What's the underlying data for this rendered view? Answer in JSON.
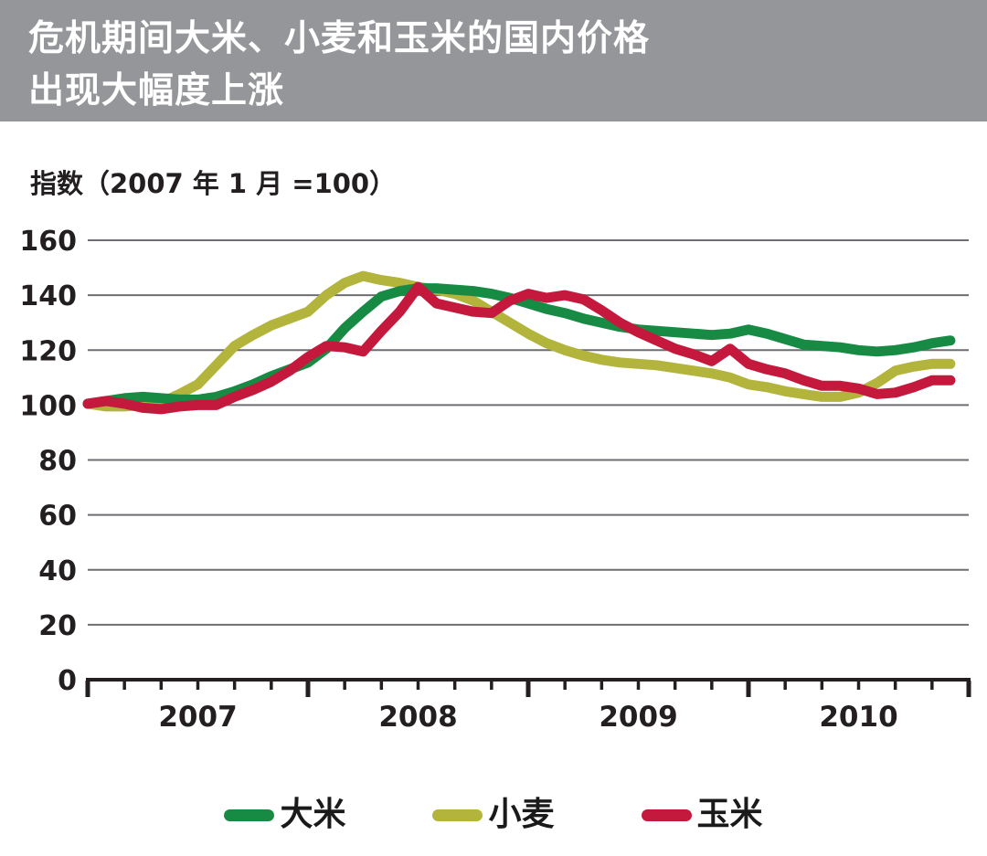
{
  "header": {
    "title_line1": "危机期间大米、小麦和玉米的国内价格",
    "title_line2": "出现大幅度上涨",
    "bg_color": "#95969A"
  },
  "chart_data": {
    "type": "line",
    "title": "危机期间大米、小麦和玉米的国内价格出现大幅度上涨",
    "axis_note": "指数（2007 年 1 月 =100）",
    "x_unit": "month",
    "x_start": "2007-01",
    "x_end": "2010-12",
    "x_tick_labels": [
      "2007",
      "2008",
      "2009",
      "2010"
    ],
    "ylim": [
      0,
      160
    ],
    "yticks": [
      0,
      20,
      40,
      60,
      80,
      100,
      120,
      140,
      160
    ],
    "grid": true,
    "legend_position": "bottom",
    "axis_color": "#231F20",
    "grid_color": "#6D6E71",
    "series": [
      {
        "key": "rice",
        "name": "大米",
        "color": "#178A43",
        "values": [
          100.5,
          101.5,
          102.5,
          103,
          102.5,
          102,
          102,
          103,
          105,
          107.5,
          110.5,
          113,
          115.5,
          120.5,
          128,
          134,
          139.5,
          141.5,
          142.5,
          142.5,
          142,
          141.5,
          140.5,
          139,
          137,
          135,
          133.5,
          131.5,
          130,
          128.5,
          127.5,
          127,
          126.5,
          126,
          125.5,
          126,
          127.5,
          126,
          124,
          122,
          121.5,
          121,
          120,
          119.5,
          120,
          121,
          122.5,
          123.5
        ]
      },
      {
        "key": "wheat",
        "name": "小麦",
        "color": "#B2B43C",
        "values": [
          100.5,
          99.5,
          99.5,
          100,
          101,
          104,
          107.5,
          114.5,
          121.5,
          125.5,
          129,
          131.5,
          134,
          140,
          144.5,
          147,
          145.5,
          144.5,
          143,
          142,
          140.5,
          138,
          134,
          130,
          126,
          122.5,
          120,
          118,
          116.5,
          115.5,
          115,
          114.5,
          113.5,
          112.5,
          111.5,
          110,
          107.5,
          106.5,
          105,
          104,
          103,
          103,
          104.5,
          108,
          112.5,
          114,
          115,
          115
        ]
      },
      {
        "key": "corn",
        "name": "玉米",
        "color": "#C4183C",
        "values": [
          100.5,
          101.5,
          100.5,
          99,
          98.5,
          99.5,
          100,
          100,
          103,
          105.5,
          108.5,
          112.5,
          117.5,
          121.5,
          121,
          119.5,
          127,
          134,
          143,
          137,
          135.5,
          134,
          133.5,
          138,
          140.5,
          139,
          140,
          138.5,
          134.5,
          130,
          126.5,
          123.5,
          120.5,
          118.5,
          116,
          120.5,
          115,
          113,
          111.5,
          109,
          107,
          107,
          106,
          104,
          104.5,
          106.5,
          109,
          109
        ]
      }
    ]
  },
  "legend": {
    "items": [
      {
        "key": "rice",
        "label": "大米",
        "color": "#178A43"
      },
      {
        "key": "wheat",
        "label": "小麦",
        "color": "#B2B43C"
      },
      {
        "key": "corn",
        "label": "玉米",
        "color": "#C4183C"
      }
    ]
  }
}
